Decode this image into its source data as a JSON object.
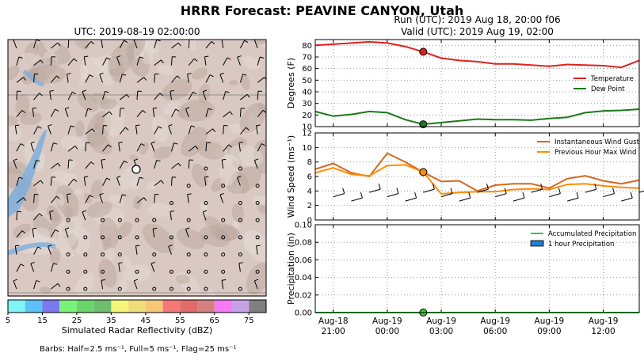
{
  "suptitle": "HRRR Forecast: PEAVINE CANYON, Utah",
  "map": {
    "title": "UTC: 2019-08-19 02:00:00",
    "colorbar_label": "Simulated Radar Reflectivity (dBZ)",
    "colorbar_ticks": [
      "5",
      "15",
      "25",
      "35",
      "45",
      "55",
      "65",
      "75"
    ],
    "colorbar_colors": [
      "#7ff5f5",
      "#5cc2f5",
      "#7b78f0",
      "#7af27a",
      "#6bd56b",
      "#6fbe6f",
      "#f5f57a",
      "#f0dc78",
      "#f5c878",
      "#f57878",
      "#e06b6b",
      "#d58080",
      "#f57af5",
      "#c8a0e6",
      "#808080"
    ],
    "barb_note": "Barbs: Half=2.5 ms⁻¹, Full=5 ms⁻¹, Flag=25 ms⁻¹"
  },
  "header": {
    "run": "Run (UTC): 2019 Aug 18, 20:00 f06",
    "valid": "Valid (UTC): 2019 Aug 19, 02:00"
  },
  "chart_data": [
    {
      "type": "line",
      "panel": "temperature",
      "ylabel": "Degrees (F)",
      "ylim": [
        10,
        85
      ],
      "yticks": [
        10,
        20,
        30,
        40,
        50,
        60,
        70,
        80
      ],
      "x_hours": [
        -4,
        -3,
        -2,
        -1,
        0,
        1,
        2,
        3,
        4,
        5,
        6,
        7,
        8,
        9,
        10,
        11,
        12,
        13,
        14
      ],
      "series": [
        {
          "name": "Temperature",
          "color": "#e0201c",
          "values": [
            80,
            81,
            82,
            83,
            82,
            79,
            74.5,
            69,
            67,
            66,
            64,
            64,
            63,
            62,
            63.5,
            63,
            62.5,
            61,
            67
          ]
        },
        {
          "name": "Dew Point",
          "color": "#1a7a1a",
          "values": [
            23,
            19,
            20.5,
            23,
            22,
            16,
            12,
            13.5,
            15,
            16.5,
            16,
            16,
            15.5,
            17,
            18,
            22,
            23.5,
            24,
            25
          ]
        }
      ],
      "valid_marker_hour": 2,
      "legend": "center-right"
    },
    {
      "type": "line",
      "panel": "wind",
      "ylabel": "Wind Speed (ms⁻¹)",
      "ylim": [
        0,
        12
      ],
      "yticks": [
        0,
        2,
        4,
        6,
        8,
        10,
        12
      ],
      "x_hours": [
        -4,
        -3,
        -2,
        -1,
        0,
        1,
        2,
        3,
        4,
        5,
        6,
        7,
        8,
        9,
        10,
        11,
        12,
        13,
        14
      ],
      "series": [
        {
          "name": "Instantaneous Wind Gust",
          "color": "#d2691e",
          "values": [
            7,
            7.8,
            6.5,
            6,
            9.2,
            8,
            6.6,
            5.3,
            5.4,
            4,
            4.8,
            5,
            5,
            4.4,
            5.7,
            6.1,
            5.4,
            5,
            5.5
          ]
        },
        {
          "name": "Previous Hour Max Wind",
          "color": "#ff8c00",
          "values": [
            6.5,
            7.2,
            6.3,
            6.1,
            7.5,
            7.6,
            6.6,
            3.6,
            3.8,
            3.9,
            3.9,
            4.2,
            4.3,
            4.2,
            4.9,
            5,
            4.7,
            4.5,
            4.4
          ]
        }
      ],
      "valid_marker_hour": 2,
      "legend": "top-right"
    },
    {
      "type": "line",
      "panel": "precipitation",
      "ylabel": "Precipitation (in)",
      "ylim": [
        0,
        0.1
      ],
      "yticks": [
        "0.00",
        "0.02",
        "0.04",
        "0.06",
        "0.08",
        "0.10"
      ],
      "x_hours": [
        -4,
        -3,
        -2,
        -1,
        0,
        1,
        2,
        3,
        4,
        5,
        6,
        7,
        8,
        9,
        10,
        11,
        12,
        13,
        14
      ],
      "series": [
        {
          "name": "Accumulated Precipitation",
          "color": "#32cd32",
          "values": [
            0,
            0,
            0,
            0,
            0,
            0,
            0,
            0,
            0,
            0,
            0,
            0,
            0,
            0,
            0,
            0,
            0,
            0,
            0
          ]
        },
        {
          "name": "1 hour Precipitation",
          "color": "#1e7fd6",
          "values": [
            0,
            0,
            0,
            0,
            0,
            0,
            0,
            0,
            0,
            0,
            0,
            0,
            0,
            0,
            0,
            0,
            0,
            0,
            0
          ]
        }
      ],
      "valid_marker_hour": 2,
      "legend": "top-right"
    }
  ],
  "x_axis": {
    "tick_hours": [
      -3,
      0,
      3,
      6,
      9,
      12
    ],
    "tick_labels": [
      [
        "Aug-18",
        "21:00"
      ],
      [
        "Aug-19",
        "00:00"
      ],
      [
        "Aug-19",
        "03:00"
      ],
      [
        "Aug-19",
        "06:00"
      ],
      [
        "Aug-19",
        "09:00"
      ],
      [
        "Aug-19",
        "12:00"
      ]
    ],
    "xlim": [
      -4,
      14
    ]
  }
}
